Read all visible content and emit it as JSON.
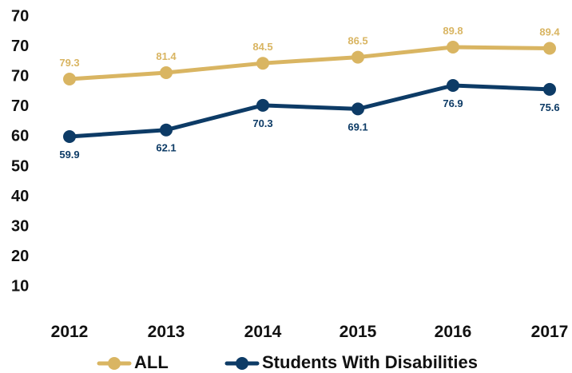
{
  "chart_data": {
    "type": "line",
    "title": "",
    "xlabel": "",
    "ylabel": "",
    "categories": [
      "2012",
      "2013",
      "2014",
      "2015",
      "2016",
      "2017"
    ],
    "y_tick_labels": [
      "70",
      "70",
      "70",
      "70",
      "60",
      "50",
      "40",
      "30",
      "20",
      "10"
    ],
    "series": [
      {
        "name": "ALL",
        "color": "#d9b562",
        "values": [
          79.3,
          81.4,
          84.5,
          86.5,
          89.8,
          89.4
        ],
        "value_labels": [
          "79.3",
          "81.4",
          "84.5",
          "86.5",
          "89.8",
          "89.4"
        ],
        "label_position": "above"
      },
      {
        "name": "Students With Disabilities",
        "color": "#0d3b66",
        "values": [
          59.9,
          62.1,
          70.3,
          69.1,
          76.9,
          75.6
        ],
        "value_labels": [
          "59.9",
          "62.1",
          "70.3",
          "69.1",
          "76.9",
          "75.6"
        ],
        "label_position": "below"
      }
    ],
    "grid": false,
    "legend": "bottom"
  }
}
